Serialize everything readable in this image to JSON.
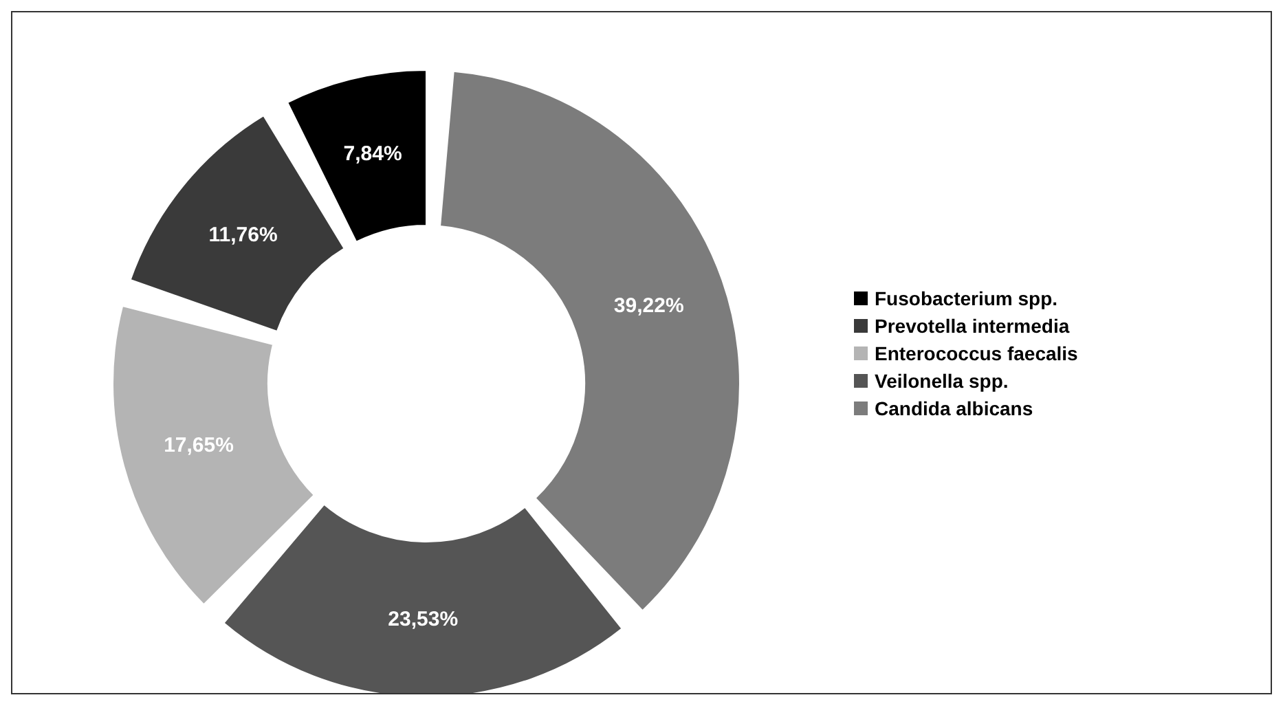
{
  "chart_data": {
    "type": "donut",
    "categories": [
      "Fusobacterium spp.",
      "Prevotella intermedia",
      "Enterococcus faecalis",
      "Veilonella spp.",
      "Candida albicans"
    ],
    "values": [
      7.84,
      11.76,
      17.65,
      23.53,
      39.22
    ],
    "value_labels": [
      "7,84%",
      "11,76%",
      "17,65%",
      "23,53%",
      "39,22%"
    ],
    "colors": [
      "#000000",
      "#3a3a3a",
      "#b4b4b4",
      "#555555",
      "#7c7c7c"
    ],
    "legend": "right"
  }
}
